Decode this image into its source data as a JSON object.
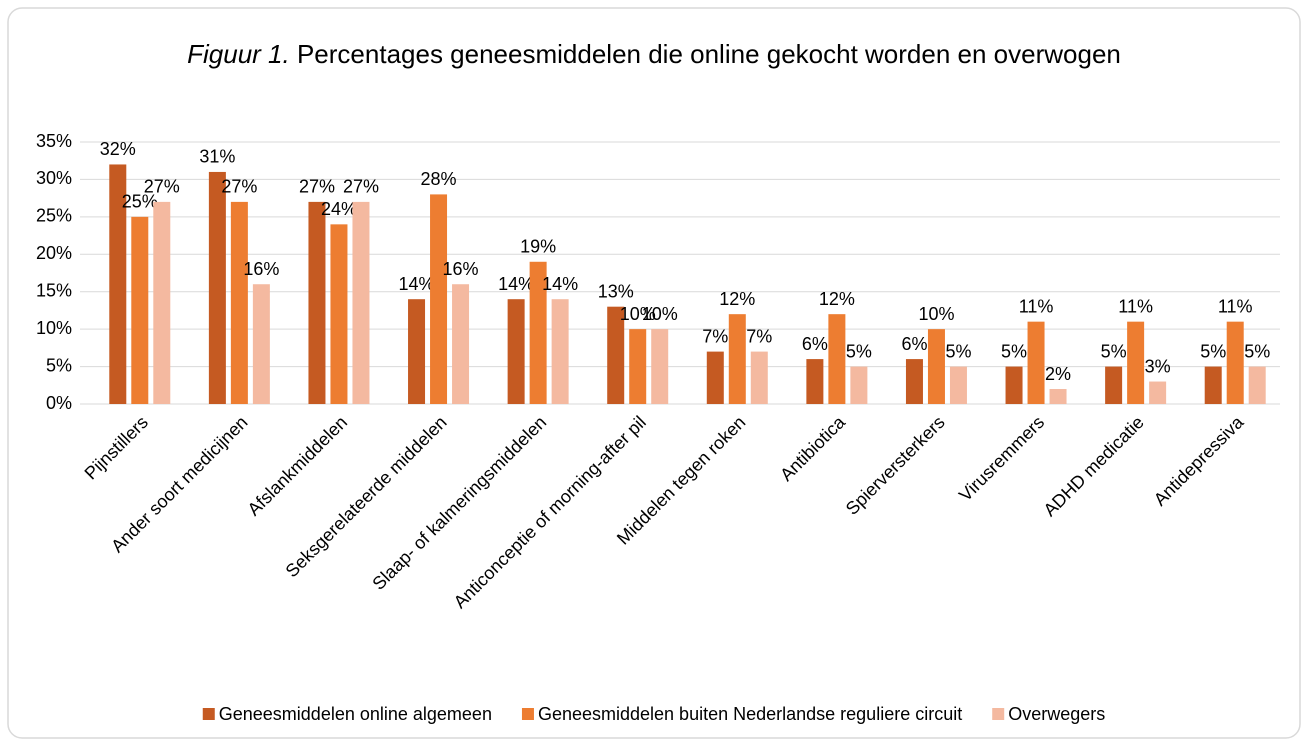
{
  "chart_data": {
    "type": "bar",
    "title_number": "Figuur 1.",
    "title": "Percentages geneesmiddelen die online gekocht worden en overwogen",
    "categories": [
      "Pijnstillers",
      "Ander soort medicijnen",
      "Afslankmiddelen",
      "Seksgerelateerde middelen",
      "Slaap- of kalmeringsmiddelen",
      "Anticonceptie of morning-after pil",
      "Middelen tegen roken",
      "Antibiotica",
      "Spierversterkers",
      "Virusremmers",
      "ADHD medicatie",
      "Antidepressiva"
    ],
    "series": [
      {
        "name": "Geneesmiddelen online algemeen",
        "color": "#c55a22",
        "values": [
          32,
          31,
          27,
          14,
          14,
          13,
          7,
          6,
          6,
          5,
          5,
          5
        ],
        "value_labels": [
          "32%",
          "31%",
          "27%",
          "14%",
          "14%",
          "13%",
          "7%",
          "6%",
          "6%",
          "5%",
          "5%",
          "5%"
        ]
      },
      {
        "name": "Geneesmiddelen buiten Nederlandse reguliere circuit",
        "color": "#ed7d31",
        "values": [
          25,
          27,
          24,
          28,
          19,
          10,
          12,
          12,
          10,
          11,
          11,
          11
        ],
        "value_labels": [
          "25%",
          "27%",
          "24%",
          "28%",
          "19%",
          "10%",
          "12%",
          "12%",
          "10%",
          "11%",
          "11%",
          "11%"
        ]
      },
      {
        "name": "Overwegers",
        "color": "#f4b9a0",
        "values": [
          27,
          16,
          27,
          16,
          14,
          10,
          7,
          5,
          5,
          2,
          3,
          5
        ],
        "value_labels": [
          "27%",
          "16%",
          "27%",
          "16%",
          "14%",
          "10%",
          "7%",
          "5%",
          "5%",
          "2%",
          "3%",
          "5%"
        ]
      }
    ],
    "ylim": [
      0,
      35
    ],
    "yticks": [
      {
        "value": 0,
        "label": "0%"
      },
      {
        "value": 5,
        "label": "5%"
      },
      {
        "value": 10,
        "label": "10%"
      },
      {
        "value": 15,
        "label": "15%"
      },
      {
        "value": 20,
        "label": "20%"
      },
      {
        "value": 25,
        "label": "25%"
      },
      {
        "value": 30,
        "label": "30%"
      },
      {
        "value": 35,
        "label": "35%"
      }
    ],
    "grid": true,
    "legend": "bottom"
  }
}
